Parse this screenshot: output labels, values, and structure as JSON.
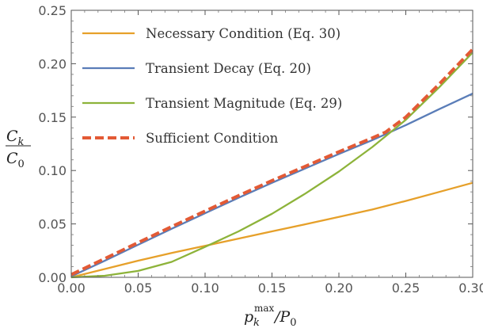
{
  "chart_data": {
    "type": "line",
    "xlabel": {
      "main": "p",
      "sub": "k",
      "sup": "max",
      "rest": "/P",
      "rest_sub": "0"
    },
    "ylabel": {
      "num": "C",
      "num_sub": "k",
      "den": "C",
      "den_sub": "0"
    },
    "xlim": [
      0.0,
      0.3
    ],
    "ylim": [
      0.0,
      0.25
    ],
    "x_ticks": [
      0.0,
      0.05,
      0.1,
      0.15,
      0.2,
      0.25,
      0.3
    ],
    "y_ticks": [
      0.0,
      0.05,
      0.1,
      0.15,
      0.2,
      0.25
    ],
    "x_tick_labels": [
      "0.00",
      "0.05",
      "0.10",
      "0.15",
      "0.20",
      "0.25",
      "0.30"
    ],
    "y_tick_labels": [
      "0.00",
      "0.05",
      "0.10",
      "0.15",
      "0.20",
      "0.25"
    ],
    "grid": false,
    "legend_position": "top-left",
    "series": [
      {
        "name": "Necessary Condition (Eq. 30)",
        "color": "#E6A02A",
        "dash": false,
        "x": [
          0.0,
          0.025,
          0.05,
          0.075,
          0.1,
          0.125,
          0.15,
          0.175,
          0.2,
          0.225,
          0.25,
          0.275,
          0.3
        ],
        "y": [
          0.0,
          0.0078,
          0.0156,
          0.0228,
          0.0295,
          0.0363,
          0.043,
          0.0497,
          0.0565,
          0.0635,
          0.0715,
          0.08,
          0.0885
        ]
      },
      {
        "name": "Transient Decay (Eq. 20)",
        "color": "#5A7DB8",
        "dash": false,
        "x": [
          0.0,
          0.025,
          0.05,
          0.075,
          0.1,
          0.125,
          0.15,
          0.175,
          0.2,
          0.225,
          0.25,
          0.275,
          0.3
        ],
        "y": [
          0.001,
          0.0155,
          0.0305,
          0.0455,
          0.06,
          0.0745,
          0.0885,
          0.102,
          0.1155,
          0.1285,
          0.1425,
          0.1575,
          0.172
        ]
      },
      {
        "name": "Transient Magnitude (Eq. 29)",
        "color": "#8DB33A",
        "dash": false,
        "x": [
          0.0,
          0.025,
          0.05,
          0.075,
          0.1,
          0.125,
          0.15,
          0.175,
          0.2,
          0.225,
          0.25,
          0.275,
          0.3
        ],
        "y": [
          0.0,
          0.0015,
          0.006,
          0.0145,
          0.0285,
          0.043,
          0.0595,
          0.0785,
          0.099,
          0.122,
          0.1475,
          0.178,
          0.2105
        ]
      },
      {
        "name": "Sufficient Condition",
        "color": "#E35A35",
        "dash": true,
        "x": [
          0.0,
          0.025,
          0.05,
          0.075,
          0.1,
          0.125,
          0.15,
          0.175,
          0.2,
          0.225,
          0.235,
          0.25,
          0.275,
          0.3
        ],
        "y": [
          0.0025,
          0.0175,
          0.0325,
          0.0475,
          0.062,
          0.0765,
          0.0905,
          0.104,
          0.1175,
          0.1305,
          0.136,
          0.15,
          0.181,
          0.2135
        ]
      }
    ]
  }
}
